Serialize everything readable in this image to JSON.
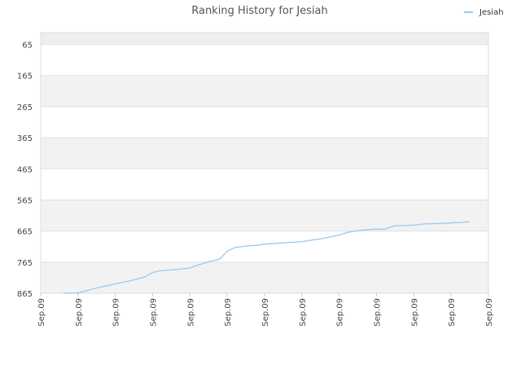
{
  "chart_data": {
    "type": "line",
    "title": "Ranking History for Jesiah",
    "xlabel": "",
    "ylabel": "",
    "y_reversed": true,
    "ylim": [
      865,
      27
    ],
    "y_ticks": [
      65,
      165,
      265,
      365,
      465,
      565,
      665,
      765,
      865
    ],
    "y_tick_labels": [
      "65",
      "165",
      "265",
      "365",
      "465",
      "565",
      "665",
      "765",
      "865"
    ],
    "x_tick_labels": [
      "Sep.09",
      "Sep.09",
      "Sep.09",
      "Sep.09",
      "Sep.09",
      "Sep.09",
      "Sep.09",
      "Sep.09",
      "Sep.09",
      "Sep.09",
      "Sep.09",
      "Sep.09",
      "Sep.09"
    ],
    "grid": true,
    "legend": {
      "position": "top-right"
    },
    "colors": {
      "line": "#99c9f0",
      "band": "#f2f2f2",
      "band_top": "#eeeeee",
      "grid": "#e0e0e0",
      "axis": "#cccccc"
    },
    "series": [
      {
        "name": "Jesiah",
        "x": [
          0.6,
          1.0,
          1.5,
          2.0,
          2.5,
          2.8,
          3.0,
          3.2,
          3.5,
          4.0,
          4.2,
          4.5,
          4.8,
          5.0,
          5.2,
          5.5,
          5.8,
          6.0,
          6.5,
          7.0,
          7.5,
          8.0,
          8.2,
          8.5,
          8.8,
          9.0,
          9.2,
          9.5,
          10.0,
          10.3,
          10.6,
          11.0,
          11.3,
          11.5
        ],
        "y": [
          865,
          864,
          848,
          835,
          822,
          812,
          798,
          793,
          790,
          784,
          775,
          764,
          755,
          730,
          718,
          713,
          711,
          707,
          703,
          699,
          690,
          678,
          670,
          664,
          660,
          659,
          659,
          648,
          646,
          642,
          641,
          639,
          637,
          635
        ]
      }
    ]
  }
}
